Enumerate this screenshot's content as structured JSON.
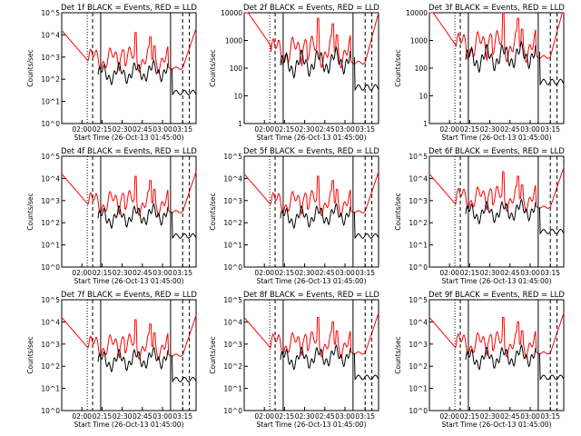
{
  "title_template": "Det {n}f BLACK = Events, RED = LLD",
  "chart_data": [
    {
      "type": "line",
      "title": "Det 1f BLACK = Events, RED = LLD",
      "xlabel": "Start Time (26-Oct-13 01:45:00)",
      "ylabel": "Counts/sec",
      "x_ticks": [
        "02:00",
        "02:15",
        "02:30",
        "02:45",
        "03:00",
        "03:15"
      ],
      "y_ticks": [
        "10^0",
        "10^1",
        "10^2",
        "10^3",
        "10^4",
        "10^5"
      ],
      "ylim": [
        1,
        100000
      ],
      "y_scale": "log",
      "xlim": [
        "01:45",
        "03:25"
      ],
      "series": [
        {
          "color": "#000000",
          "x": [],
          "y": []
        },
        {
          "color": "#ff0000",
          "x": [],
          "y": []
        }
      ]
    },
    {
      "type": "line",
      "title": "Det 2f BLACK = Events, RED = LLD",
      "xlabel": "Start Time (26-Oct-13 01:45:00)",
      "ylabel": "Counts/sec",
      "x_ticks": [
        "02:00",
        "02:15",
        "02:30",
        "02:45",
        "03:00",
        "03:15"
      ],
      "y_ticks": [
        "1",
        "10",
        "100",
        "1000",
        "10000"
      ],
      "ylim": [
        1,
        10000
      ],
      "y_scale": "log",
      "xlim": [
        "01:45",
        "03:25"
      ],
      "series": [
        {
          "color": "#000000",
          "x": [],
          "y": []
        },
        {
          "color": "#ff0000",
          "x": [],
          "y": []
        }
      ]
    },
    {
      "type": "line",
      "title": "Det 3f BLACK = Events, RED = LLD",
      "xlabel": "Start Time (26-Oct-13 01:45:00)",
      "ylabel": "Counts/sec",
      "x_ticks": [
        "02:00",
        "02:15",
        "02:30",
        "02:45",
        "03:00",
        "03:15"
      ],
      "y_ticks": [
        "1",
        "10",
        "100",
        "1000",
        "10000"
      ],
      "ylim": [
        1,
        10000
      ],
      "y_scale": "log",
      "xlim": [
        "01:45",
        "03:25"
      ],
      "series": [
        {
          "color": "#000000",
          "x": [],
          "y": []
        },
        {
          "color": "#ff0000",
          "x": [],
          "y": []
        }
      ]
    },
    {
      "type": "line",
      "title": "Det 4f BLACK = Events, RED = LLD",
      "xlabel": "Start Time (26-Oct-13 01:45:00)",
      "ylabel": "Counts/sec",
      "x_ticks": [
        "02:00",
        "02:15",
        "02:30",
        "02:45",
        "03:00",
        "03:15"
      ],
      "y_ticks": [
        "10^0",
        "10^1",
        "10^2",
        "10^3",
        "10^4",
        "10^5"
      ],
      "ylim": [
        1,
        100000
      ],
      "y_scale": "log",
      "xlim": [
        "01:45",
        "03:25"
      ],
      "series": [
        {
          "color": "#000000",
          "x": [],
          "y": []
        },
        {
          "color": "#ff0000",
          "x": [],
          "y": []
        }
      ]
    },
    {
      "type": "line",
      "title": "Det 5f BLACK = Events, RED = LLD",
      "xlabel": "Start Time (26-Oct-13 01:45:00)",
      "ylabel": "Counts/sec",
      "x_ticks": [
        "02:00",
        "02:15",
        "02:30",
        "02:45",
        "03:00",
        "03:15"
      ],
      "y_ticks": [
        "10^0",
        "10^1",
        "10^2",
        "10^3",
        "10^4",
        "10^5"
      ],
      "ylim": [
        1,
        100000
      ],
      "y_scale": "log",
      "xlim": [
        "01:45",
        "03:25"
      ],
      "series": [
        {
          "color": "#000000",
          "x": [],
          "y": []
        },
        {
          "color": "#ff0000",
          "x": [],
          "y": []
        }
      ]
    },
    {
      "type": "line",
      "title": "Det 6f BLACK = Events, RED = LLD",
      "xlabel": "Start Time (26-Oct-13 01:45:00)",
      "ylabel": "Counts/sec",
      "x_ticks": [
        "02:00",
        "02:15",
        "02:30",
        "02:45",
        "03:00",
        "03:15"
      ],
      "y_ticks": [
        "10^0",
        "10^1",
        "10^2",
        "10^3",
        "10^4",
        "10^5"
      ],
      "ylim": [
        1,
        100000
      ],
      "y_scale": "log",
      "xlim": [
        "01:45",
        "03:25"
      ],
      "series": [
        {
          "color": "#000000",
          "x": [],
          "y": []
        },
        {
          "color": "#ff0000",
          "x": [],
          "y": []
        }
      ]
    },
    {
      "type": "line",
      "title": "Det 7f BLACK = Events, RED = LLD",
      "xlabel": "Start Time (26-Oct-13 01:45:00)",
      "ylabel": "Counts/sec",
      "x_ticks": [
        "02:00",
        "02:15",
        "02:30",
        "02:45",
        "03:00",
        "03:15"
      ],
      "y_ticks": [
        "10^0",
        "10^1",
        "10^2",
        "10^3",
        "10^4",
        "10^5"
      ],
      "ylim": [
        1,
        100000
      ],
      "y_scale": "log",
      "xlim": [
        "01:45",
        "03:25"
      ],
      "series": [
        {
          "color": "#000000",
          "x": [],
          "y": []
        },
        {
          "color": "#ff0000",
          "x": [],
          "y": []
        }
      ]
    },
    {
      "type": "line",
      "title": "Det 8f BLACK = Events, RED = LLD",
      "xlabel": "Start Time (26-Oct-13 01:45:00)",
      "ylabel": "Counts/sec",
      "x_ticks": [
        "02:00",
        "02:15",
        "02:30",
        "02:45",
        "03:00",
        "03:15"
      ],
      "y_ticks": [
        "10^0",
        "10^1",
        "10^2",
        "10^3",
        "10^4",
        "10^5"
      ],
      "ylim": [
        1,
        100000
      ],
      "y_scale": "log",
      "xlim": [
        "01:45",
        "03:25"
      ],
      "series": [
        {
          "color": "#000000",
          "x": [],
          "y": []
        },
        {
          "color": "#ff0000",
          "x": [],
          "y": []
        }
      ]
    },
    {
      "type": "line",
      "title": "Det 9f BLACK = Events, RED = LLD",
      "xlabel": "Start Time (26-Oct-13 01:45:00)",
      "ylabel": "Counts/sec",
      "x_ticks": [
        "02:00",
        "02:15",
        "02:30",
        "02:45",
        "03:00",
        "03:15"
      ],
      "y_ticks": [
        "10^0",
        "10^1",
        "10^2",
        "10^3",
        "10^4",
        "10^5"
      ],
      "ylim": [
        1,
        100000
      ],
      "y_scale": "log",
      "xlim": [
        "01:45",
        "03:25"
      ],
      "series": [
        {
          "color": "#000000",
          "x": [],
          "y": []
        },
        {
          "color": "#ff0000",
          "x": [],
          "y": []
        }
      ]
    }
  ]
}
